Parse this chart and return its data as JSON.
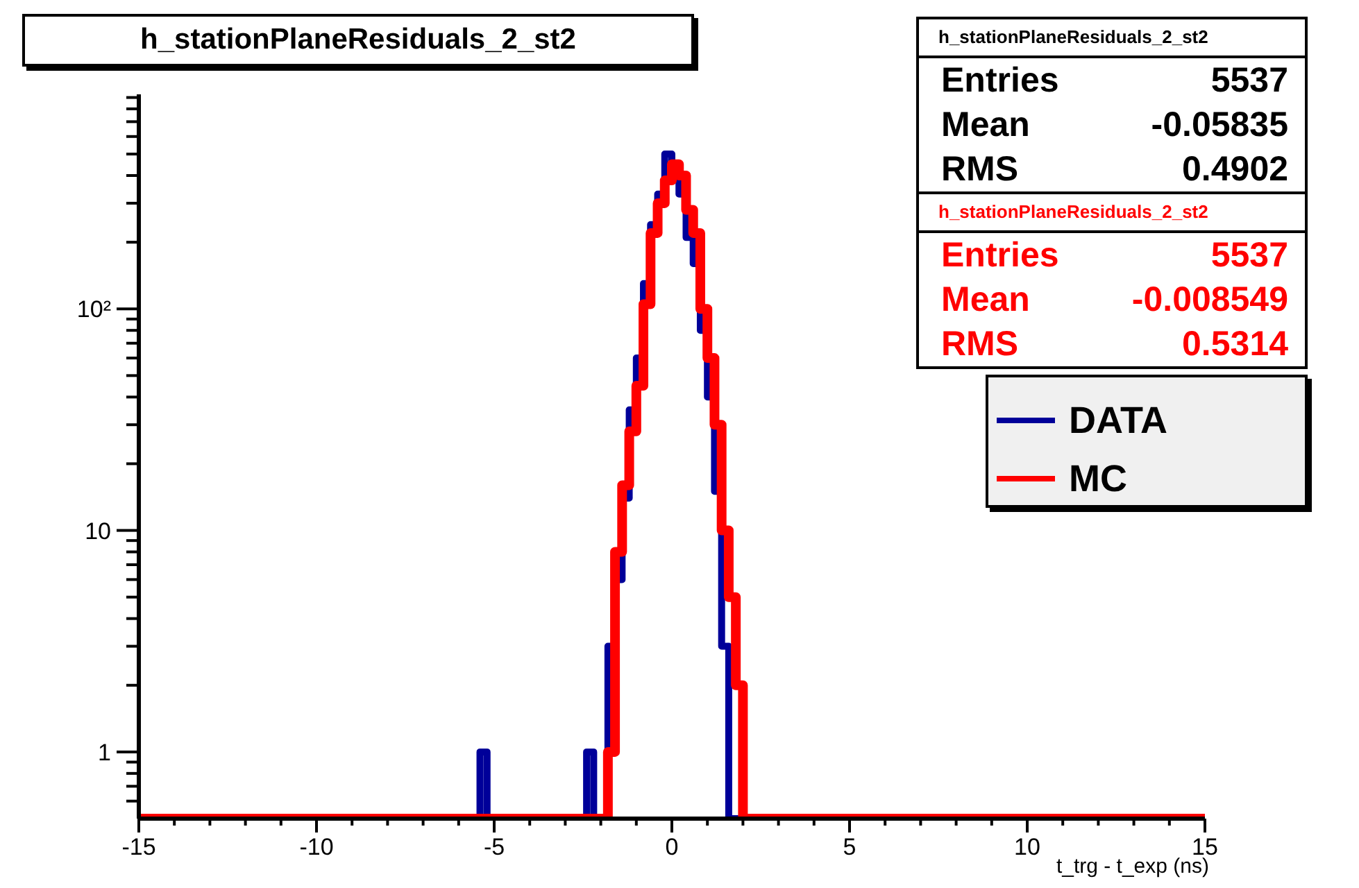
{
  "chart_data": {
    "type": "histogram",
    "title": "h_stationPlaneResiduals_2_st2",
    "xlabel": "t_trg - t_exp (ns)",
    "bins": [
      -15,
      -5.4,
      -5.2,
      -2.4,
      -2.2,
      -2.0,
      -1.8,
      -1.6,
      -1.4,
      -1.2,
      -1.0,
      -0.8,
      -0.6,
      -0.4,
      -0.2,
      0,
      0.2,
      0.4,
      0.6,
      0.8,
      1.0,
      1.2,
      1.4,
      1.6,
      1.8,
      2.0,
      15
    ],
    "series": [
      {
        "name": "DATA",
        "color": "#000099",
        "values": [
          null,
          1,
          null,
          1,
          null,
          null,
          3,
          6,
          14,
          35,
          60,
          130,
          240,
          330,
          500,
          420,
          330,
          210,
          160,
          80,
          40,
          15,
          3,
          null,
          null,
          null
        ]
      },
      {
        "name": "MC",
        "color": "#ff0000",
        "values": [
          null,
          null,
          null,
          null,
          null,
          null,
          1,
          8,
          16,
          28,
          45,
          105,
          220,
          300,
          380,
          450,
          400,
          280,
          220,
          100,
          60,
          30,
          10,
          5,
          2,
          null
        ]
      }
    ],
    "xlim": [
      -15,
      15
    ],
    "xticks": [
      -15,
      {
        "value": -14,
        "label": null
      },
      {
        "value": -13,
        "label": null
      },
      {
        "value": -12,
        "label": null
      },
      {
        "value": -11,
        "label": null
      },
      -10,
      {
        "value": -9,
        "label": null
      },
      {
        "value": -8,
        "label": null
      },
      {
        "value": -7,
        "label": null
      },
      {
        "value": -6,
        "label": null
      },
      -5,
      {
        "value": -4,
        "label": null
      },
      {
        "value": -3,
        "label": null
      },
      {
        "value": -2,
        "label": null
      },
      {
        "value": -1,
        "label": null
      },
      0,
      {
        "value": 1,
        "label": null
      },
      {
        "value": 2,
        "label": null
      },
      {
        "value": 3,
        "label": null
      },
      {
        "value": 4,
        "label": null
      },
      5,
      {
        "value": 6,
        "label": null
      },
      {
        "value": 7,
        "label": null
      },
      {
        "value": 8,
        "label": null
      },
      {
        "value": 9,
        "label": null
      },
      10,
      {
        "value": 11,
        "label": null
      },
      {
        "value": 12,
        "label": null
      },
      {
        "value": 13,
        "label": null
      },
      {
        "value": 14,
        "label": null
      },
      15
    ],
    "ylim": [
      0.5,
      930
    ],
    "yticks": [
      {
        "value": 0.6,
        "label": null
      },
      {
        "value": 0.7,
        "label": null
      },
      {
        "value": 0.8,
        "label": null
      },
      {
        "value": 0.9,
        "label": null
      },
      1,
      {
        "value": 2,
        "label": null
      },
      {
        "value": 3,
        "label": null
      },
      {
        "value": 4,
        "label": null
      },
      {
        "value": 5,
        "label": null
      },
      {
        "value": 6,
        "label": null
      },
      {
        "value": 7,
        "label": null
      },
      {
        "value": 8,
        "label": null
      },
      {
        "value": 9,
        "label": null
      },
      10,
      {
        "value": 20,
        "label": null
      },
      {
        "value": 30,
        "label": null
      },
      {
        "value": 40,
        "label": null
      },
      {
        "value": 50,
        "label": null
      },
      {
        "value": 60,
        "label": null
      },
      {
        "value": 70,
        "label": null
      },
      {
        "value": 80,
        "label": null
      },
      {
        "value": 90,
        "label": null
      },
      {
        "value": 100,
        "label": "10²"
      },
      {
        "value": 200,
        "label": null
      },
      {
        "value": 300,
        "label": null
      },
      {
        "value": 400,
        "label": null
      },
      {
        "value": 500,
        "label": null
      },
      {
        "value": 600,
        "label": null
      },
      {
        "value": 700,
        "label": null
      },
      {
        "value": 800,
        "label": null
      },
      {
        "value": 900,
        "label": null
      }
    ],
    "log": "y",
    "grid": false,
    "legend": "right",
    "annotations": [
      "h_stationPlaneResiduals_2_st2",
      "Entries",
      "5537",
      "Mean",
      "-0.05835",
      "RMS",
      "0.4902",
      "h_stationPlaneResiduals_2_st2",
      "Entries",
      "5537",
      "Mean",
      "-0.008549",
      "RMS",
      "0.5314"
    ]
  }
}
